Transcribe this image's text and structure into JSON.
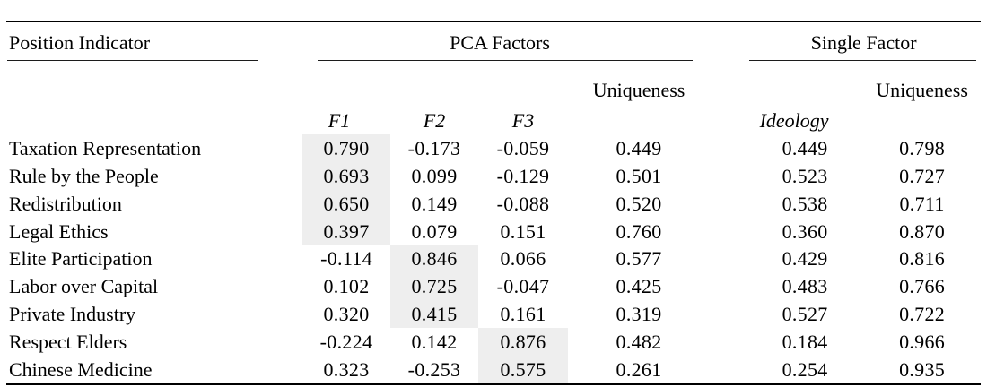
{
  "table": {
    "group_headers": {
      "position_indicator": "Position Indicator",
      "pca_factors": "PCA Factors",
      "single_factor": "Single Factor"
    },
    "sub_headers": {
      "pca_uniqueness": "Uniqueness",
      "single_uniqueness": "Uniqueness",
      "f1": "F1",
      "f2": "F2",
      "f3": "F3",
      "ideology": "Ideology"
    },
    "highlight_color": "#eeeeee",
    "rows": [
      {
        "label": "Taxation Representation",
        "f1": "0.790",
        "f2": "-0.173",
        "f3": "-0.059",
        "pca_uniqueness": "0.449",
        "ideology": "0.449",
        "single_uniqueness": "0.798",
        "highlight": "f1"
      },
      {
        "label": "Rule by the People",
        "f1": "0.693",
        "f2": "0.099",
        "f3": "-0.129",
        "pca_uniqueness": "0.501",
        "ideology": "0.523",
        "single_uniqueness": "0.727",
        "highlight": "f1"
      },
      {
        "label": "Redistribution",
        "f1": "0.650",
        "f2": "0.149",
        "f3": "-0.088",
        "pca_uniqueness": "0.520",
        "ideology": "0.538",
        "single_uniqueness": "0.711",
        "highlight": "f1"
      },
      {
        "label": "Legal Ethics",
        "f1": "0.397",
        "f2": "0.079",
        "f3": "0.151",
        "pca_uniqueness": "0.760",
        "ideology": "0.360",
        "single_uniqueness": "0.870",
        "highlight": "f1"
      },
      {
        "label": "Elite Participation",
        "f1": "-0.114",
        "f2": "0.846",
        "f3": "0.066",
        "pca_uniqueness": "0.577",
        "ideology": "0.429",
        "single_uniqueness": "0.816",
        "highlight": "f2"
      },
      {
        "label": "Labor over Capital",
        "f1": "0.102",
        "f2": "0.725",
        "f3": "-0.047",
        "pca_uniqueness": "0.425",
        "ideology": "0.483",
        "single_uniqueness": "0.766",
        "highlight": "f2"
      },
      {
        "label": "Private Industry",
        "f1": "0.320",
        "f2": "0.415",
        "f3": "0.161",
        "pca_uniqueness": "0.319",
        "ideology": "0.527",
        "single_uniqueness": "0.722",
        "highlight": "f2"
      },
      {
        "label": "Respect Elders",
        "f1": "-0.224",
        "f2": "0.142",
        "f3": "0.876",
        "pca_uniqueness": "0.482",
        "ideology": "0.184",
        "single_uniqueness": "0.966",
        "highlight": "f3"
      },
      {
        "label": "Chinese Medicine",
        "f1": "0.323",
        "f2": "-0.253",
        "f3": "0.575",
        "pca_uniqueness": "0.261",
        "ideology": "0.254",
        "single_uniqueness": "0.935",
        "highlight": "f3"
      }
    ]
  }
}
